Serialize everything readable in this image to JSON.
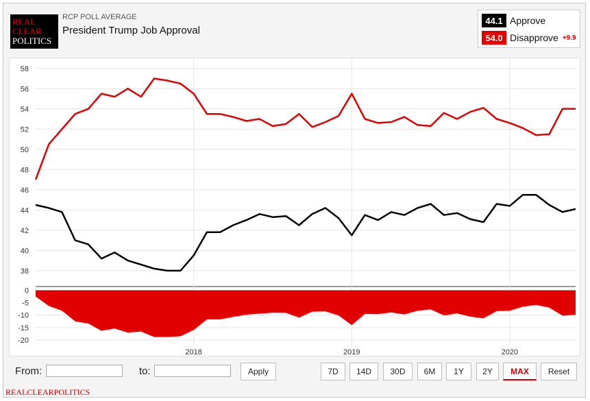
{
  "logo": {
    "line1": "REAL",
    "line2": "CLEAR",
    "line3": "POLITICS"
  },
  "header": {
    "subtitle": "RCP POLL AVERAGE",
    "title": "President Trump Job Approval"
  },
  "legend": {
    "approve": {
      "value": "44.1",
      "label": "Approve",
      "color": "#000000"
    },
    "disapprove": {
      "value": "54.0",
      "label": "Disapprove",
      "color": "#e00000",
      "spread": "+9.9"
    }
  },
  "controls": {
    "from_label": "From:",
    "to_label": "to:",
    "from_value": "",
    "to_value": "",
    "apply": "Apply",
    "ranges": [
      "7D",
      "14D",
      "30D",
      "6M",
      "1Y",
      "2Y",
      "MAX"
    ],
    "active_range": "MAX",
    "reset": "Reset"
  },
  "footer": {
    "text": "REALCLEARPOLITICS"
  },
  "chart_data": {
    "type": "line",
    "x_unit": "month",
    "x": [
      "2017-01",
      "2017-02",
      "2017-03",
      "2017-04",
      "2017-05",
      "2017-06",
      "2017-07",
      "2017-08",
      "2017-09",
      "2017-10",
      "2017-11",
      "2017-12",
      "2018-01",
      "2018-02",
      "2018-03",
      "2018-04",
      "2018-05",
      "2018-06",
      "2018-07",
      "2018-08",
      "2018-09",
      "2018-10",
      "2018-11",
      "2018-12",
      "2019-01",
      "2019-02",
      "2019-03",
      "2019-04",
      "2019-05",
      "2019-06",
      "2019-07",
      "2019-08",
      "2019-09",
      "2019-10",
      "2019-11",
      "2019-12",
      "2020-01",
      "2020-02",
      "2020-03",
      "2020-04",
      "2020-05",
      "2020-06"
    ],
    "series": [
      {
        "name": "Approve",
        "color": "#000000",
        "values": [
          44.5,
          44.2,
          43.8,
          41.0,
          40.6,
          39.2,
          39.8,
          39.0,
          38.6,
          38.2,
          38.0,
          38.0,
          39.5,
          41.8,
          41.8,
          42.5,
          43.0,
          43.6,
          43.3,
          43.4,
          42.5,
          43.6,
          44.2,
          43.2,
          41.5,
          43.5,
          43.0,
          43.8,
          43.5,
          44.2,
          44.6,
          43.5,
          43.7,
          43.1,
          42.8,
          44.6,
          44.4,
          45.5,
          45.5,
          44.5,
          43.8,
          44.1
        ]
      },
      {
        "name": "Disapprove",
        "color": "#e00000",
        "values": [
          47.0,
          50.5,
          52.0,
          53.5,
          54.0,
          55.5,
          55.2,
          56.0,
          55.2,
          57.0,
          56.8,
          56.5,
          55.5,
          53.5,
          53.5,
          53.2,
          52.8,
          53.0,
          52.3,
          52.5,
          53.5,
          52.2,
          52.7,
          53.3,
          55.5,
          53.0,
          52.6,
          52.7,
          53.2,
          52.4,
          52.3,
          53.6,
          53.0,
          53.7,
          54.1,
          53.0,
          52.6,
          52.1,
          51.4,
          51.5,
          54.0,
          54.0
        ]
      },
      {
        "name": "Spread",
        "color": "#e00000",
        "values": [
          -2.5,
          -6.3,
          -8.2,
          -12.5,
          -13.4,
          -16.3,
          -15.4,
          -17.0,
          -16.6,
          -18.8,
          -18.8,
          -18.5,
          -16.0,
          -11.7,
          -11.7,
          -10.7,
          -9.8,
          -9.4,
          -9.0,
          -9.1,
          -11.0,
          -8.6,
          -8.5,
          -10.1,
          -14.0,
          -9.5,
          -9.6,
          -8.9,
          -9.7,
          -8.2,
          -7.7,
          -10.1,
          -9.3,
          -10.6,
          -11.3,
          -8.4,
          -8.2,
          -6.6,
          -5.9,
          -7.0,
          -10.2,
          -9.9
        ]
      }
    ],
    "yticks": [
      38,
      40,
      42,
      44,
      46,
      48,
      50,
      52,
      54,
      56,
      58
    ],
    "ylim": [
      36.5,
      59
    ],
    "spread_yticks": [
      0,
      -5,
      -10,
      -15,
      -20
    ],
    "spread_ylim": [
      -22.5,
      1.5
    ],
    "xticks": [
      {
        "label": "2018",
        "at": "2018-01"
      },
      {
        "label": "2019",
        "at": "2019-01"
      },
      {
        "label": "2020",
        "at": "2020-01"
      }
    ],
    "grid": true
  }
}
